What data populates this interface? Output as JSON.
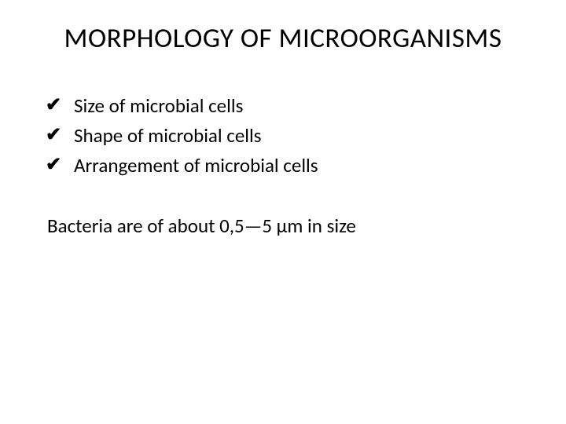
{
  "slide": {
    "title": "MORPHOLOGY OF MICROORGANISMS",
    "bullets": [
      "Size of microbial cells",
      "Shape of microbial cells",
      "Arrangement of microbial cells"
    ],
    "paragraph": "Bacteria are of about  0,5—5 μm in size",
    "bullet_marker": "✔",
    "colors": {
      "background": "#ffffff",
      "text": "#000000"
    },
    "fonts": {
      "title_size_pt": 35,
      "body_size_pt": 25
    }
  }
}
